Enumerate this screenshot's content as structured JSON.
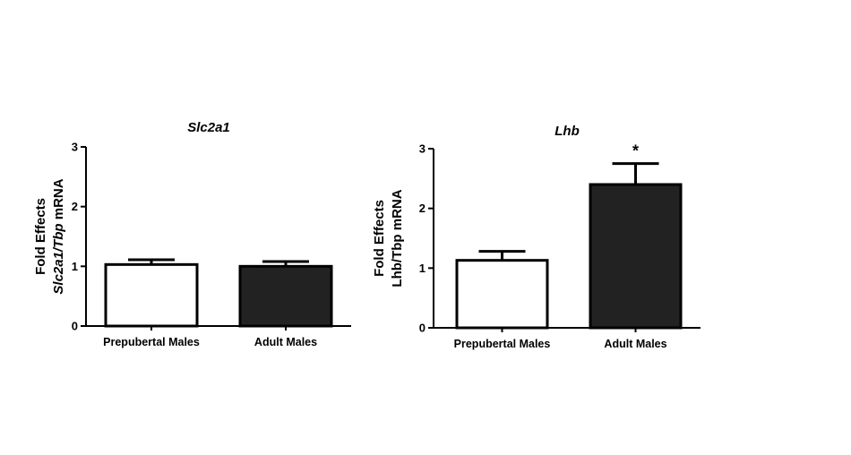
{
  "chart_data": [
    {
      "type": "bar",
      "title": "Slc2a1",
      "ylabel_line1": "Fold  Effects",
      "ylabel_line2": {
        "italic": "Slc2a1/Tbp",
        "plain": " mRNA"
      },
      "categories": [
        "Prepubertal Males",
        "Adult Males"
      ],
      "values": [
        1.03,
        1.0
      ],
      "errors": [
        0.08,
        0.08
      ],
      "bar_colors": [
        "#ffffff",
        "#222222"
      ],
      "ylim": [
        0,
        3
      ],
      "yticks": [
        "0",
        "1",
        "2",
        "3"
      ],
      "annotations": [
        "",
        ""
      ]
    },
    {
      "type": "bar",
      "title": "Lhb",
      "ylabel_line1": "Fold Effects",
      "ylabel_line2": {
        "italic": "",
        "plain": "Lhb/Tbp mRNA"
      },
      "categories": [
        "Prepubertal Males",
        "Adult Males"
      ],
      "values": [
        1.13,
        2.4
      ],
      "errors": [
        0.15,
        0.35
      ],
      "bar_colors": [
        "#ffffff",
        "#222222"
      ],
      "ylim": [
        0,
        3
      ],
      "yticks": [
        "0",
        "1",
        "2",
        "3"
      ],
      "annotations": [
        "",
        "*"
      ]
    }
  ]
}
